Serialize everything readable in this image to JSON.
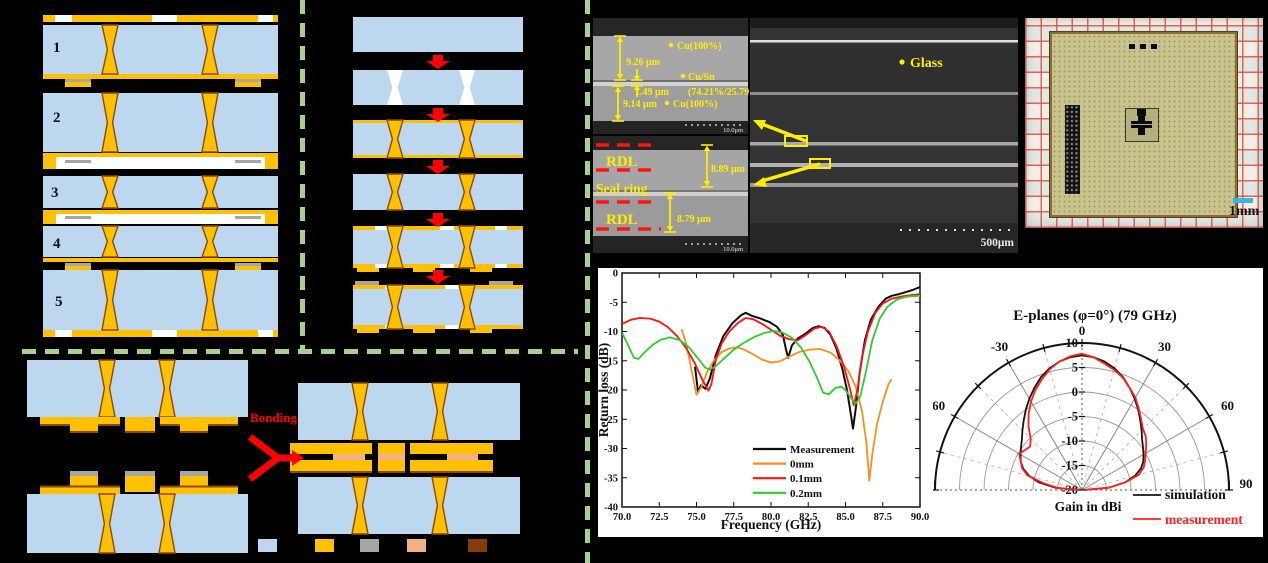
{
  "process": {
    "stack_labels": [
      "1",
      "2",
      "3",
      "4",
      "5"
    ],
    "bonding_label": "Bonding",
    "legend_colors": [
      "#BDD7EE",
      "#FFC000",
      "#A6A6A6",
      "#F4B183",
      "#843C0C"
    ]
  },
  "sem": {
    "top": {
      "m1": "9.26 μm",
      "m2": "1.49 μm",
      "m3": "9.14 μm",
      "l1": "Cu(100%)",
      "l2a": "Cu/Sn",
      "l2b": "(74.21%/25.79%)",
      "l3": "Cu(100%)",
      "scale": "10.0μm"
    },
    "bottom": {
      "rdl_top": "RDL",
      "seal": "Seal ring",
      "rdl_bottom": "RDL",
      "m1": "8.89 μm",
      "m2": "8.79 μm",
      "scale": "10.0μm"
    },
    "large": {
      "glass_label": "Glass",
      "scale": "500μm"
    }
  },
  "photo": {
    "scale_label": "1mm"
  },
  "chart_data": [
    {
      "type": "line",
      "title": "",
      "xlabel": "Frequency (GHz)",
      "ylabel": "Return loss (dB)",
      "xlim": [
        70,
        90
      ],
      "ylim": [
        -40,
        0
      ],
      "xticks": [
        70.0,
        72.5,
        75.0,
        77.5,
        80.0,
        82.5,
        85.0,
        87.5,
        90.0
      ],
      "yticks": [
        0,
        -5,
        -10,
        -15,
        -20,
        -25,
        -30,
        -35,
        -40
      ],
      "grid": false,
      "legend_position": "inside-bottom-center",
      "series": [
        {
          "name": "Measurement",
          "color": "#0d0d0d",
          "points": [
            [
              74.9,
              -16
            ],
            [
              75.1,
              -20.3
            ],
            [
              75.3,
              -19.2
            ],
            [
              75.6,
              -19.8
            ],
            [
              75.9,
              -18
            ],
            [
              76.3,
              -14
            ],
            [
              76.8,
              -10.8
            ],
            [
              77.4,
              -8.6
            ],
            [
              78.0,
              -7.2
            ],
            [
              78.3,
              -6.8
            ],
            [
              78.7,
              -7.3
            ],
            [
              79.3,
              -7.8
            ],
            [
              79.9,
              -8.4
            ],
            [
              80.4,
              -9.2
            ],
            [
              80.8,
              -10.6
            ],
            [
              81.0,
              -13
            ],
            [
              81.15,
              -14.5
            ],
            [
              81.4,
              -12.4
            ],
            [
              81.8,
              -11.2
            ],
            [
              82.3,
              -10.4
            ],
            [
              82.8,
              -9.4
            ],
            [
              83.2,
              -9.1
            ],
            [
              83.6,
              -9.4
            ],
            [
              84.0,
              -10.6
            ],
            [
              84.4,
              -13
            ],
            [
              84.8,
              -16.5
            ],
            [
              85.1,
              -20
            ],
            [
              85.35,
              -24
            ],
            [
              85.5,
              -26.6
            ],
            [
              85.7,
              -23
            ],
            [
              85.95,
              -17
            ],
            [
              86.3,
              -11.5
            ],
            [
              86.7,
              -8
            ],
            [
              87.2,
              -5.8
            ],
            [
              87.7,
              -4.4
            ],
            [
              88.1,
              -3.9
            ],
            [
              88.6,
              -3.6
            ],
            [
              89.0,
              -3.3
            ],
            [
              89.5,
              -2.9
            ],
            [
              90.0,
              -2.4
            ]
          ]
        },
        {
          "name": "0mm",
          "color": "#F5901F",
          "points": [
            [
              74.0,
              -9.6
            ],
            [
              74.3,
              -12
            ],
            [
              74.7,
              -17
            ],
            [
              75.0,
              -20.8
            ],
            [
              75.3,
              -19.6
            ],
            [
              75.7,
              -17
            ],
            [
              76.2,
              -14.8
            ],
            [
              76.7,
              -13.5
            ],
            [
              77.2,
              -12.9
            ],
            [
              77.7,
              -12.7
            ],
            [
              78.2,
              -13.1
            ],
            [
              78.8,
              -13.9
            ],
            [
              79.4,
              -14.8
            ],
            [
              80.0,
              -15.3
            ],
            [
              80.6,
              -15.1
            ],
            [
              81.2,
              -14.3
            ],
            [
              81.9,
              -13.5
            ],
            [
              82.6,
              -13.1
            ],
            [
              83.3,
              -13.0
            ],
            [
              84.0,
              -13.6
            ],
            [
              84.6,
              -14.9
            ],
            [
              85.2,
              -16.8
            ],
            [
              85.7,
              -19.5
            ],
            [
              86.1,
              -23.5
            ],
            [
              86.4,
              -29
            ],
            [
              86.6,
              -35.5
            ],
            [
              86.8,
              -31
            ],
            [
              87.1,
              -26
            ],
            [
              87.5,
              -22
            ],
            [
              87.9,
              -18.9
            ],
            [
              88.1,
              -18.2
            ]
          ]
        },
        {
          "name": "0.1mm",
          "color": "#FF1212",
          "points": [
            [
              70.0,
              -8.7
            ],
            [
              70.6,
              -8.0
            ],
            [
              71.2,
              -7.7
            ],
            [
              71.9,
              -7.8
            ],
            [
              72.5,
              -8.3
            ],
            [
              73.1,
              -9.3
            ],
            [
              73.7,
              -10.8
            ],
            [
              74.3,
              -12.8
            ],
            [
              74.9,
              -15.5
            ],
            [
              75.4,
              -18.3
            ],
            [
              75.8,
              -20.1
            ],
            [
              76.0,
              -19.0
            ],
            [
              76.3,
              -14.8
            ],
            [
              76.7,
              -12
            ],
            [
              77.2,
              -10
            ],
            [
              77.8,
              -8.5
            ],
            [
              78.3,
              -7.7
            ],
            [
              78.8,
              -7.9
            ],
            [
              79.4,
              -8.7
            ],
            [
              80.0,
              -9.7
            ],
            [
              80.6,
              -10.7
            ],
            [
              81.2,
              -11.3
            ],
            [
              81.8,
              -11.5
            ],
            [
              82.4,
              -10.5
            ],
            [
              82.9,
              -9.5
            ],
            [
              83.4,
              -9.2
            ],
            [
              83.9,
              -10
            ],
            [
              84.4,
              -12.5
            ],
            [
              84.9,
              -16
            ],
            [
              85.3,
              -19.8
            ],
            [
              85.55,
              -22.6
            ],
            [
              85.8,
              -20
            ],
            [
              86.1,
              -14.5
            ],
            [
              86.5,
              -10
            ],
            [
              87.0,
              -6.8
            ],
            [
              87.5,
              -5.2
            ],
            [
              88.1,
              -4.4
            ],
            [
              88.8,
              -4.0
            ],
            [
              89.4,
              -3.8
            ],
            [
              90.0,
              -3.6
            ]
          ]
        },
        {
          "name": "0.2mm",
          "color": "#2ECC2E",
          "points": [
            [
              70.0,
              -10.2
            ],
            [
              70.4,
              -12.3
            ],
            [
              70.8,
              -14.5
            ],
            [
              71.1,
              -14.7
            ],
            [
              71.5,
              -13.6
            ],
            [
              72.0,
              -12.4
            ],
            [
              72.6,
              -11.4
            ],
            [
              73.2,
              -11.0
            ],
            [
              73.9,
              -11.5
            ],
            [
              74.5,
              -12.7
            ],
            [
              75.1,
              -14.6
            ],
            [
              75.6,
              -16.2
            ],
            [
              75.9,
              -16.5
            ],
            [
              76.3,
              -15.9
            ],
            [
              76.9,
              -14.5
            ],
            [
              77.5,
              -13.1
            ],
            [
              78.2,
              -11.9
            ],
            [
              78.9,
              -10.9
            ],
            [
              79.6,
              -10.2
            ],
            [
              80.2,
              -9.9
            ],
            [
              80.8,
              -10.2
            ],
            [
              81.4,
              -11.1
            ],
            [
              82.0,
              -12.7
            ],
            [
              82.6,
              -15.2
            ],
            [
              83.1,
              -18
            ],
            [
              83.5,
              -20.5
            ],
            [
              83.9,
              -20.7
            ],
            [
              84.3,
              -19.7
            ],
            [
              84.7,
              -19.4
            ],
            [
              85.0,
              -20
            ],
            [
              85.4,
              -21.5
            ],
            [
              85.7,
              -22.3
            ],
            [
              86.0,
              -21
            ],
            [
              86.4,
              -16.5
            ],
            [
              86.8,
              -11.5
            ],
            [
              87.3,
              -7.8
            ],
            [
              87.8,
              -5.8
            ],
            [
              88.4,
              -4.6
            ],
            [
              89.0,
              -4.1
            ],
            [
              89.5,
              -3.95
            ],
            [
              90.0,
              -3.9
            ]
          ]
        }
      ]
    },
    {
      "type": "polar-line",
      "title": "E-planes (φ=0°) (79 GHz)",
      "xlabel": "Gain in dBi",
      "rlim": [
        -20,
        10
      ],
      "r_ticks": [
        10,
        5,
        0,
        -5,
        -10,
        -15,
        -20
      ],
      "angle_ticks": [
        -90,
        -60,
        -30,
        0,
        30,
        60,
        90
      ],
      "series": [
        {
          "name": "simulation",
          "color": "#141414",
          "points": [
            [
              -90,
              -19.5
            ],
            [
              -85,
              -14.5
            ],
            [
              -80,
              -11
            ],
            [
              -75,
              -8.8
            ],
            [
              -70,
              -7.2
            ],
            [
              -65,
              -6.2
            ],
            [
              -60,
              -5.5
            ],
            [
              -55,
              -4.8
            ],
            [
              -50,
              -4
            ],
            [
              -45,
              -2.8
            ],
            [
              -40,
              -1.5
            ],
            [
              -35,
              0
            ],
            [
              -30,
              1.5
            ],
            [
              -25,
              3
            ],
            [
              -20,
              4.5
            ],
            [
              -15,
              5.7
            ],
            [
              -10,
              6.6
            ],
            [
              -5,
              7.2
            ],
            [
              0,
              7.5
            ],
            [
              5,
              7.2
            ],
            [
              10,
              6.6
            ],
            [
              15,
              5.7
            ],
            [
              20,
              4.5
            ],
            [
              25,
              3
            ],
            [
              30,
              1.5
            ],
            [
              35,
              0
            ],
            [
              40,
              -1.5
            ],
            [
              45,
              -2.8
            ],
            [
              50,
              -4
            ],
            [
              55,
              -4.8
            ],
            [
              60,
              -5.5
            ],
            [
              65,
              -6.2
            ],
            [
              70,
              -7.2
            ],
            [
              75,
              -8.8
            ],
            [
              80,
              -11
            ],
            [
              85,
              -14.5
            ],
            [
              90,
              -19.5
            ]
          ]
        },
        {
          "name": "measurement",
          "color": "#FF2020",
          "points": [
            [
              -90,
              -19.5
            ],
            [
              -85,
              -15
            ],
            [
              -80,
              -12
            ],
            [
              -75,
              -8.5
            ],
            [
              -70,
              -7
            ],
            [
              -65,
              -6.2
            ],
            [
              -60,
              -5.2
            ],
            [
              -55,
              -5.8
            ],
            [
              -50,
              -6.2
            ],
            [
              -45,
              -5.2
            ],
            [
              -40,
              -3
            ],
            [
              -35,
              -1
            ],
            [
              -30,
              0.8
            ],
            [
              -25,
              2.5
            ],
            [
              -20,
              4
            ],
            [
              -15,
              5.5
            ],
            [
              -10,
              6.6
            ],
            [
              -5,
              7.4
            ],
            [
              0,
              7.8
            ],
            [
              5,
              7.2
            ],
            [
              10,
              6.2
            ],
            [
              15,
              5.4
            ],
            [
              20,
              4.4
            ],
            [
              25,
              3
            ],
            [
              30,
              1.8
            ],
            [
              35,
              0.2
            ],
            [
              40,
              -1.2
            ],
            [
              45,
              -2.4
            ],
            [
              50,
              -3
            ],
            [
              55,
              -4
            ],
            [
              60,
              -5
            ],
            [
              65,
              -5.8
            ],
            [
              70,
              -6.6
            ],
            [
              75,
              -8
            ],
            [
              80,
              -11
            ],
            [
              85,
              -14.5
            ],
            [
              90,
              -19.5
            ]
          ]
        }
      ]
    }
  ]
}
